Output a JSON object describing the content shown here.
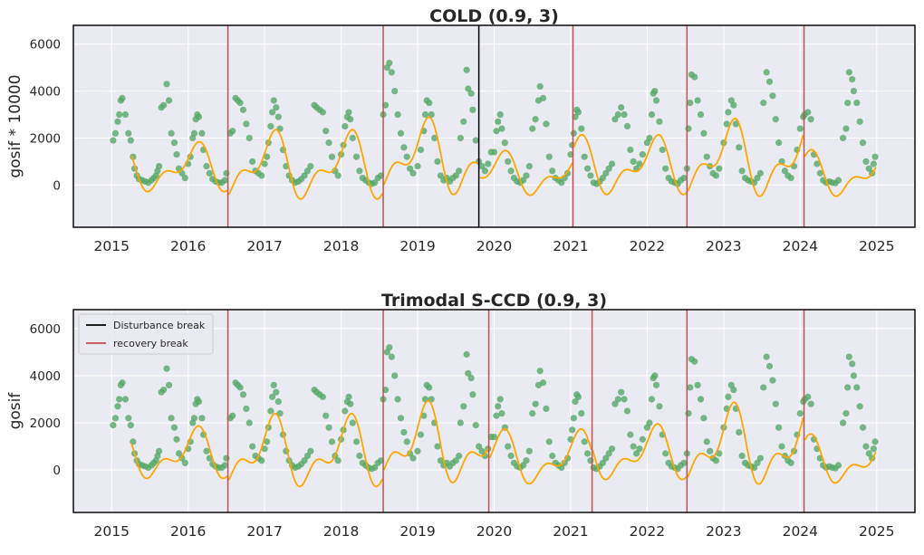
{
  "figure": {
    "colors": {
      "background": "#eaeaf2",
      "grid": "#ffffff",
      "points": "#55a868",
      "fit": "#ffa500",
      "disturbance": "#000000",
      "recovery": "#c44e52"
    }
  },
  "chart_data": [
    {
      "type": "scatter",
      "title": "COLD (0.9, 3)",
      "ylabel": "gosif * 10000",
      "xlim": [
        2014.5,
        2025.5
      ],
      "ylim": [
        -1800,
        6800
      ],
      "x_ticks": [
        2015,
        2016,
        2017,
        2018,
        2019,
        2020,
        2021,
        2022,
        2023,
        2024,
        2025
      ],
      "x_tick_labels": [
        "2015",
        "2016",
        "2017",
        "2018",
        "2019",
        "2020",
        "2021",
        "2022",
        "2023",
        "2024",
        "2025"
      ],
      "y_ticks": [
        0,
        2000,
        4000,
        6000
      ],
      "y_tick_labels": [
        "0",
        "2000",
        "4000",
        "6000"
      ],
      "grid": true,
      "disturbance_breaks": [
        2019.8
      ],
      "recovery_breaks": [
        2016.52,
        2018.55,
        2021.03,
        2022.52,
        2024.05
      ],
      "series": [
        {
          "kind": "observations",
          "style": "green markers"
        },
        {
          "kind": "fit",
          "style": "orange line"
        }
      ]
    },
    {
      "type": "scatter",
      "title": "Trimodal S-CCD (0.9, 3)",
      "ylabel": "gosif",
      "xlim": [
        2014.5,
        2025.5
      ],
      "ylim": [
        -1800,
        6800
      ],
      "x_ticks": [
        2015,
        2016,
        2017,
        2018,
        2019,
        2020,
        2021,
        2022,
        2023,
        2024,
        2025
      ],
      "x_tick_labels": [
        "2015",
        "2016",
        "2017",
        "2018",
        "2019",
        "2020",
        "2021",
        "2022",
        "2023",
        "2024",
        "2025"
      ],
      "y_ticks": [
        0,
        2000,
        4000,
        6000
      ],
      "y_tick_labels": [
        "0",
        "2000",
        "4000",
        "6000"
      ],
      "grid": true,
      "disturbance_breaks": [],
      "recovery_breaks": [
        2016.52,
        2018.55,
        2019.93,
        2021.28,
        2022.52,
        2024.05
      ],
      "legend": {
        "position": "top-left",
        "entries": [
          {
            "label": "Disturbance break",
            "color": "#000000"
          },
          {
            "label": "recovery break",
            "color": "#c44e52"
          }
        ]
      },
      "series": [
        {
          "kind": "observations",
          "style": "green markers"
        },
        {
          "kind": "fit",
          "style": "orange line"
        }
      ]
    }
  ],
  "observations": [
    [
      2015.02,
      1900
    ],
    [
      2015.05,
      2200
    ],
    [
      2015.08,
      2700
    ],
    [
      2015.1,
      3000
    ],
    [
      2015.12,
      3600
    ],
    [
      2015.14,
      3700
    ],
    [
      2015.18,
      3000
    ],
    [
      2015.22,
      2200
    ],
    [
      2015.25,
      1900
    ],
    [
      2015.28,
      1200
    ],
    [
      2015.3,
      700
    ],
    [
      2015.33,
      400
    ],
    [
      2015.36,
      250
    ],
    [
      2015.4,
      200
    ],
    [
      2015.44,
      150
    ],
    [
      2015.48,
      100
    ],
    [
      2015.52,
      200
    ],
    [
      2015.55,
      300
    ],
    [
      2015.58,
      400
    ],
    [
      2015.6,
      600
    ],
    [
      2015.62,
      800
    ],
    [
      2015.65,
      3300
    ],
    [
      2015.68,
      3400
    ],
    [
      2015.72,
      4300
    ],
    [
      2015.75,
      3600
    ],
    [
      2015.78,
      2200
    ],
    [
      2015.82,
      1800
    ],
    [
      2015.85,
      1300
    ],
    [
      2015.88,
      700
    ],
    [
      2015.92,
      500
    ],
    [
      2015.96,
      300
    ],
    [
      2016.0,
      900
    ],
    [
      2016.03,
      1200
    ],
    [
      2016.06,
      2000
    ],
    [
      2016.08,
      2200
    ],
    [
      2016.1,
      2800
    ],
    [
      2016.12,
      3000
    ],
    [
      2016.14,
      2900
    ],
    [
      2016.18,
      2200
    ],
    [
      2016.2,
      1500
    ],
    [
      2016.24,
      800
    ],
    [
      2016.28,
      500
    ],
    [
      2016.32,
      250
    ],
    [
      2016.36,
      150
    ],
    [
      2016.4,
      100
    ],
    [
      2016.44,
      100
    ],
    [
      2016.48,
      200
    ],
    [
      2016.5,
      500
    ],
    [
      2016.55,
      2200
    ],
    [
      2016.58,
      2300
    ],
    [
      2016.62,
      3700
    ],
    [
      2016.65,
      3600
    ],
    [
      2016.68,
      3500
    ],
    [
      2016.72,
      3200
    ],
    [
      2016.76,
      2600
    ],
    [
      2016.8,
      2000
    ],
    [
      2016.84,
      1000
    ],
    [
      2016.88,
      600
    ],
    [
      2016.92,
      500
    ],
    [
      2016.96,
      400
    ],
    [
      2017.0,
      900
    ],
    [
      2017.03,
      1200
    ],
    [
      2017.05,
      1800
    ],
    [
      2017.08,
      2500
    ],
    [
      2017.1,
      3100
    ],
    [
      2017.12,
      3600
    ],
    [
      2017.15,
      3300
    ],
    [
      2017.18,
      2900
    ],
    [
      2017.2,
      2400
    ],
    [
      2017.24,
      1500
    ],
    [
      2017.28,
      800
    ],
    [
      2017.32,
      400
    ],
    [
      2017.36,
      200
    ],
    [
      2017.4,
      100
    ],
    [
      2017.44,
      150
    ],
    [
      2017.48,
      250
    ],
    [
      2017.52,
      400
    ],
    [
      2017.56,
      600
    ],
    [
      2017.6,
      800
    ],
    [
      2017.65,
      3400
    ],
    [
      2017.68,
      3300
    ],
    [
      2017.72,
      3200
    ],
    [
      2017.76,
      3100
    ],
    [
      2017.8,
      2300
    ],
    [
      2017.84,
      1800
    ],
    [
      2017.88,
      1200
    ],
    [
      2017.92,
      600
    ],
    [
      2017.96,
      400
    ],
    [
      2018.0,
      1300
    ],
    [
      2018.03,
      1700
    ],
    [
      2018.05,
      2500
    ],
    [
      2018.08,
      2900
    ],
    [
      2018.1,
      3100
    ],
    [
      2018.12,
      2800
    ],
    [
      2018.15,
      2000
    ],
    [
      2018.2,
      1200
    ],
    [
      2018.24,
      600
    ],
    [
      2018.28,
      300
    ],
    [
      2018.32,
      200
    ],
    [
      2018.36,
      100
    ],
    [
      2018.4,
      50
    ],
    [
      2018.44,
      100
    ],
    [
      2018.48,
      300
    ],
    [
      2018.52,
      400
    ],
    [
      2018.55,
      3000
    ],
    [
      2018.58,
      3400
    ],
    [
      2018.6,
      5000
    ],
    [
      2018.63,
      5200
    ],
    [
      2018.66,
      4800
    ],
    [
      2018.7,
      4000
    ],
    [
      2018.74,
      3000
    ],
    [
      2018.78,
      2200
    ],
    [
      2018.82,
      1600
    ],
    [
      2018.86,
      1200
    ],
    [
      2018.9,
      700
    ],
    [
      2018.94,
      500
    ],
    [
      2019.0,
      800
    ],
    [
      2019.04,
      1500
    ],
    [
      2019.08,
      2300
    ],
    [
      2019.1,
      3000
    ],
    [
      2019.12,
      3600
    ],
    [
      2019.15,
      3500
    ],
    [
      2019.18,
      3000
    ],
    [
      2019.22,
      2000
    ],
    [
      2019.26,
      1000
    ],
    [
      2019.3,
      400
    ],
    [
      2019.34,
      200
    ],
    [
      2019.38,
      300
    ],
    [
      2019.42,
      150
    ],
    [
      2019.46,
      300
    ],
    [
      2019.5,
      400
    ],
    [
      2019.54,
      600
    ],
    [
      2019.56,
      2000
    ],
    [
      2019.6,
      2700
    ],
    [
      2019.64,
      4900
    ],
    [
      2019.66,
      4100
    ],
    [
      2019.7,
      3900
    ],
    [
      2019.72,
      3200
    ],
    [
      2019.76,
      1900
    ],
    [
      2019.8,
      1000
    ],
    [
      2019.84,
      800
    ],
    [
      2019.88,
      600
    ],
    [
      2019.92,
      900
    ],
    [
      2019.96,
      1400
    ],
    [
      2020.0,
      1400
    ],
    [
      2020.03,
      2300
    ],
    [
      2020.05,
      2700
    ],
    [
      2020.08,
      3000
    ],
    [
      2020.1,
      2400
    ],
    [
      2020.14,
      1800
    ],
    [
      2020.18,
      1000
    ],
    [
      2020.22,
      600
    ],
    [
      2020.26,
      300
    ],
    [
      2020.3,
      150
    ],
    [
      2020.34,
      100
    ],
    [
      2020.38,
      200
    ],
    [
      2020.42,
      400
    ],
    [
      2020.46,
      800
    ],
    [
      2020.5,
      2400
    ],
    [
      2020.54,
      2800
    ],
    [
      2020.58,
      3600
    ],
    [
      2020.6,
      4200
    ],
    [
      2020.64,
      3700
    ],
    [
      2020.68,
      2600
    ],
    [
      2020.72,
      1200
    ],
    [
      2020.76,
      600
    ],
    [
      2020.8,
      300
    ],
    [
      2020.84,
      200
    ],
    [
      2020.88,
      100
    ],
    [
      2020.92,
      300
    ],
    [
      2020.96,
      500
    ],
    [
      2021.0,
      1300
    ],
    [
      2021.02,
      1700
    ],
    [
      2021.04,
      2200
    ],
    [
      2021.06,
      2900
    ],
    [
      2021.08,
      3200
    ],
    [
      2021.1,
      3100
    ],
    [
      2021.14,
      2400
    ],
    [
      2021.18,
      1200
    ],
    [
      2021.22,
      700
    ],
    [
      2021.26,
      400
    ],
    [
      2021.3,
      100
    ],
    [
      2021.34,
      50
    ],
    [
      2021.38,
      150
    ],
    [
      2021.42,
      300
    ],
    [
      2021.46,
      500
    ],
    [
      2021.5,
      700
    ],
    [
      2021.54,
      900
    ],
    [
      2021.58,
      2800
    ],
    [
      2021.62,
      3000
    ],
    [
      2021.66,
      3300
    ],
    [
      2021.7,
      3000
    ],
    [
      2021.74,
      2500
    ],
    [
      2021.78,
      1500
    ],
    [
      2021.82,
      1000
    ],
    [
      2021.86,
      700
    ],
    [
      2021.9,
      900
    ],
    [
      2021.94,
      1300
    ],
    [
      2022.0,
      1800
    ],
    [
      2022.03,
      2000
    ],
    [
      2022.06,
      3000
    ],
    [
      2022.08,
      3900
    ],
    [
      2022.1,
      4000
    ],
    [
      2022.12,
      3600
    ],
    [
      2022.16,
      2700
    ],
    [
      2022.2,
      1500
    ],
    [
      2022.24,
      700
    ],
    [
      2022.28,
      300
    ],
    [
      2022.32,
      150
    ],
    [
      2022.36,
      100
    ],
    [
      2022.4,
      50
    ],
    [
      2022.44,
      200
    ],
    [
      2022.48,
      300
    ],
    [
      2022.52,
      700
    ],
    [
      2022.54,
      2400
    ],
    [
      2022.56,
      3500
    ],
    [
      2022.58,
      4700
    ],
    [
      2022.62,
      4600
    ],
    [
      2022.66,
      3600
    ],
    [
      2022.7,
      3000
    ],
    [
      2022.74,
      2200
    ],
    [
      2022.78,
      1200
    ],
    [
      2022.82,
      800
    ],
    [
      2022.86,
      500
    ],
    [
      2022.9,
      400
    ],
    [
      2022.94,
      700
    ],
    [
      2023.0,
      1800
    ],
    [
      2023.04,
      2600
    ],
    [
      2023.06,
      3100
    ],
    [
      2023.1,
      3600
    ],
    [
      2023.13,
      3400
    ],
    [
      2023.16,
      2600
    ],
    [
      2023.2,
      1600
    ],
    [
      2023.24,
      600
    ],
    [
      2023.28,
      300
    ],
    [
      2023.32,
      200
    ],
    [
      2023.36,
      150
    ],
    [
      2023.4,
      100
    ],
    [
      2023.44,
      300
    ],
    [
      2023.48,
      500
    ],
    [
      2023.52,
      3500
    ],
    [
      2023.56,
      4800
    ],
    [
      2023.6,
      4400
    ],
    [
      2023.64,
      3800
    ],
    [
      2023.68,
      2800
    ],
    [
      2023.72,
      1800
    ],
    [
      2023.76,
      1000
    ],
    [
      2023.8,
      600
    ],
    [
      2023.84,
      400
    ],
    [
      2023.88,
      300
    ],
    [
      2023.92,
      800
    ],
    [
      2023.96,
      1500
    ],
    [
      2024.0,
      2400
    ],
    [
      2024.04,
      2900
    ],
    [
      2024.06,
      3000
    ],
    [
      2024.1,
      3100
    ],
    [
      2024.14,
      2800
    ],
    [
      2024.18,
      1300
    ],
    [
      2024.22,
      900
    ],
    [
      2024.26,
      500
    ],
    [
      2024.3,
      200
    ],
    [
      2024.34,
      100
    ],
    [
      2024.38,
      150
    ],
    [
      2024.42,
      100
    ],
    [
      2024.46,
      80
    ],
    [
      2024.5,
      200
    ],
    [
      2024.56,
      2000
    ],
    [
      2024.6,
      2400
    ],
    [
      2024.62,
      3500
    ],
    [
      2024.64,
      4800
    ],
    [
      2024.68,
      4500
    ],
    [
      2024.7,
      4000
    ],
    [
      2024.74,
      3500
    ],
    [
      2024.78,
      2700
    ],
    [
      2024.82,
      1800
    ],
    [
      2024.86,
      1000
    ],
    [
      2024.9,
      700
    ],
    [
      2024.94,
      500
    ],
    [
      2024.96,
      900
    ],
    [
      2024.98,
      1200
    ]
  ]
}
